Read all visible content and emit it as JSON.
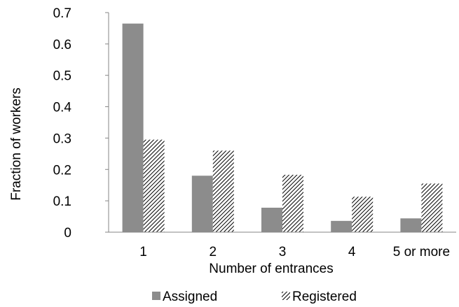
{
  "chart_data": {
    "type": "bar",
    "title": "",
    "xlabel": "Number of entrances",
    "ylabel": "Fraction of workers",
    "categories": [
      "1",
      "2",
      "3",
      "4",
      "5 or more"
    ],
    "ylim": [
      0,
      0.7
    ],
    "yticks": [
      "0",
      "0.1",
      "0.2",
      "0.3",
      "0.4",
      "0.5",
      "0.6",
      "0.7"
    ],
    "grid": false,
    "legend_position": "bottom",
    "series": [
      {
        "name": "Assigned",
        "values": [
          0.665,
          0.18,
          0.078,
          0.036,
          0.044
        ],
        "color": "#8c8c8c",
        "pattern": "solid"
      },
      {
        "name": "Registered",
        "values": [
          0.295,
          0.26,
          0.183,
          0.113,
          0.155
        ],
        "color": "#000000",
        "pattern": "diagonal-hatch"
      }
    ]
  }
}
